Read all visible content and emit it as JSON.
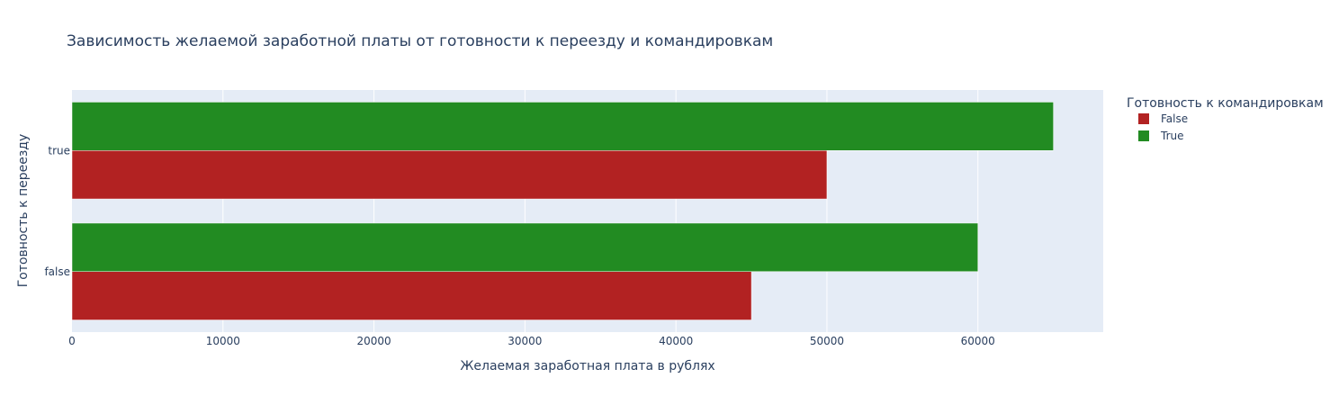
{
  "chart_data": {
    "type": "bar",
    "orientation": "horizontal",
    "barmode": "group",
    "title": "Зависимость желаемой заработной платы от готовности к переезду и командировкам",
    "xlabel": "Желаемая заработная плата в рублях",
    "ylabel": "Готовность к переезду",
    "categories": [
      "false",
      "true"
    ],
    "xlim": [
      0,
      68300
    ],
    "x_ticks": [
      0,
      10000,
      20000,
      30000,
      40000,
      50000,
      60000
    ],
    "grid": true,
    "legend": {
      "title": "Готовность к командировкам",
      "placement": "top-right"
    },
    "series": [
      {
        "name": "False",
        "color": "#b22222",
        "values": [
          45000,
          50000
        ]
      },
      {
        "name": "True",
        "color": "#228b22",
        "values": [
          60000,
          65000
        ]
      }
    ]
  }
}
